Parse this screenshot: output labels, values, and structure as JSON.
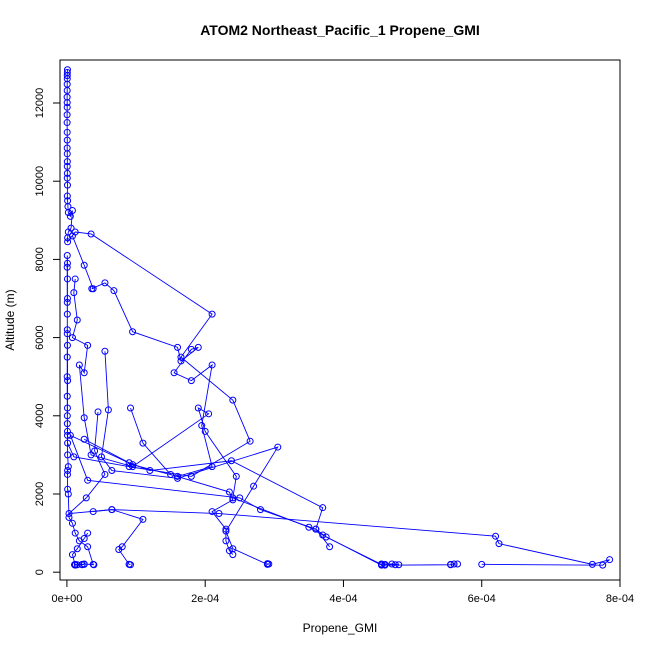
{
  "chart_data": {
    "type": "scatter",
    "title": "ATOM2 Northeast_Pacific_1 Propene_GMI",
    "xlabel": "Propene_GMI",
    "ylabel": "Altitude (m)",
    "xlim": [
      -1e-05,
      0.0008
    ],
    "ylim": [
      -200,
      13100
    ],
    "x_ticks": [
      0,
      0.0002,
      0.0004,
      0.0006,
      0.0008
    ],
    "x_tick_labels": [
      "0e+00",
      "2e-04",
      "4e-04",
      "6e-04",
      "8e-04"
    ],
    "y_ticks": [
      0,
      2000,
      4000,
      6000,
      8000,
      10000,
      12000
    ],
    "y_tick_labels": [
      "0",
      "2000",
      "4000",
      "6000",
      "8000",
      "10000",
      "12000"
    ],
    "grid": false,
    "series_color": "#0000ff",
    "series": [
      {
        "mode": "lines+markers",
        "points": [
          [
            8e-07,
            12850
          ],
          [
            6e-07,
            12780
          ],
          [
            5e-07,
            12700
          ],
          [
            5e-07,
            12620
          ],
          [
            4e-07,
            12480
          ],
          [
            4e-07,
            12320
          ],
          [
            3e-07,
            12150
          ],
          [
            4e-07,
            12010
          ],
          [
            4e-07,
            11890
          ],
          [
            3e-07,
            11700
          ],
          [
            3e-07,
            11500
          ],
          [
            4e-07,
            11250
          ],
          [
            5e-07,
            11050
          ],
          [
            4e-07,
            10850
          ],
          [
            5e-07,
            10700
          ],
          [
            6e-07,
            10500
          ],
          [
            5e-07,
            10380
          ],
          [
            6e-07,
            10200
          ],
          [
            5e-07,
            10080
          ],
          [
            8e-07,
            9900
          ],
          [
            6e-07,
            9620
          ],
          [
            1e-06,
            9500
          ],
          [
            1.5e-06,
            9350
          ],
          [
            2e-06,
            9200
          ],
          [
            5e-06,
            9100
          ],
          [
            8e-06,
            9250
          ],
          [
            6e-06,
            8800
          ],
          [
            2e-06,
            8700
          ],
          [
            1e-06,
            8550
          ],
          [
            1e-06,
            8450
          ],
          [
            1.2e-05,
            8700
          ],
          [
            3.5e-05,
            8650
          ],
          [
            0.00021,
            6600
          ],
          [
            0.000165,
            5500
          ],
          [
            0.00024,
            4400
          ],
          [
            0.000265,
            3350
          ],
          [
            0.00018,
            2450
          ],
          [
            9e-05,
            2700
          ],
          [
            1e-05,
            2950
          ],
          [
            1e-06,
            3300
          ],
          [
            8e-07,
            3600
          ],
          [
            6e-07,
            4000
          ],
          [
            5e-07,
            4500
          ],
          [
            4e-07,
            5000
          ],
          [
            5e-07,
            5500
          ],
          [
            5e-07,
            6100
          ],
          [
            6e-07,
            6600
          ],
          [
            8e-07,
            7000
          ],
          [
            8e-07,
            7500
          ],
          [
            8e-07,
            7900
          ],
          [
            5e-07,
            8100
          ],
          [
            4e-07,
            7800
          ],
          [
            5e-07,
            6900
          ],
          [
            6e-07,
            6200
          ],
          [
            8e-07,
            5800
          ],
          [
            1e-06,
            4900
          ],
          [
            8e-07,
            4200
          ],
          [
            6e-07,
            3800
          ],
          [
            8e-07,
            3500
          ],
          [
            1e-06,
            3000
          ],
          [
            2e-06,
            2700
          ],
          [
            1e-06,
            2600
          ],
          [
            8e-07,
            2500
          ],
          [
            1e-06,
            2120
          ],
          [
            2e-06,
            2000
          ],
          [
            3e-06,
            1400
          ],
          [
            8e-06,
            1250
          ],
          [
            1.2e-05,
            1000
          ],
          [
            1.8e-05,
            800
          ],
          [
            3e-05,
            650
          ],
          [
            3.8e-05,
            200
          ],
          [
            3.9e-05,
            190
          ],
          [
            2.5e-05,
            210
          ],
          [
            2.2e-05,
            200
          ],
          [
            1.5e-05,
            190
          ],
          [
            1.2e-05,
            200
          ],
          [
            1.1e-05,
            190
          ]
        ]
      },
      {
        "mode": "lines+markers",
        "points": [
          [
            8e-06,
            8600
          ],
          [
            2.5e-05,
            7850
          ],
          [
            3.8e-05,
            7250
          ],
          [
            3.6e-05,
            7250
          ],
          [
            5.5e-05,
            7400
          ],
          [
            6.8e-05,
            7200
          ],
          [
            9.5e-05,
            6150
          ],
          [
            0.00016,
            5750
          ],
          [
            0.000165,
            5400
          ],
          [
            0.00019,
            5750
          ],
          [
            0.00018,
            5700
          ],
          [
            0.000155,
            5100
          ],
          [
            0.00018,
            4900
          ],
          [
            0.00021,
            5300
          ],
          [
            0.000195,
            3750
          ],
          [
            0.00021,
            2700
          ],
          [
            0.00016,
            2450
          ],
          [
            9.5e-05,
            2750
          ],
          [
            5e-06,
            3500
          ],
          [
            3e-05,
            2350
          ],
          [
            0.00025,
            1900
          ],
          [
            0.00028,
            1600
          ],
          [
            0.00036,
            1100
          ],
          [
            0.000375,
            900
          ],
          [
            0.000455,
            200
          ],
          [
            0.00046,
            200
          ],
          [
            0.000475,
            190
          ],
          [
            0.00048,
            190
          ],
          [
            0.00047,
            210
          ],
          [
            0.000455,
            210
          ]
        ]
      },
      {
        "mode": "lines+markers",
        "points": [
          [
            1.2e-05,
            7500
          ],
          [
            1e-05,
            7150
          ],
          [
            1.5e-05,
            6450
          ],
          [
            8e-06,
            6000
          ],
          [
            3e-05,
            5800
          ],
          [
            2.5e-05,
            5100
          ],
          [
            1.8e-05,
            5300
          ],
          [
            2.5e-05,
            3950
          ],
          [
            3.5e-05,
            3000
          ],
          [
            9.5e-05,
            2700
          ],
          [
            0.000205,
            4050
          ],
          [
            0.00019,
            4200
          ],
          [
            0.0002,
            3600
          ],
          [
            0.000245,
            2450
          ],
          [
            0.00024,
            1900
          ],
          [
            0.00035,
            1150
          ],
          [
            0.00037,
            950
          ],
          [
            0.000455,
            180
          ],
          [
            0.00046,
            180
          ],
          [
            0.000555,
            190
          ],
          [
            0.00056,
            210
          ],
          [
            0.000565,
            210
          ],
          [
            0.000555,
            200
          ]
        ]
      },
      {
        "mode": "lines+markers",
        "points": [
          [
            5.5e-05,
            5650
          ],
          [
            6e-05,
            4150
          ],
          [
            5e-05,
            2950
          ],
          [
            6.5e-05,
            2600
          ],
          [
            0.00016,
            2400
          ],
          [
            0.000305,
            3200
          ],
          [
            0.00027,
            2200
          ],
          [
            0.00023,
            1050
          ],
          [
            0.00024,
            600
          ],
          [
            0.00029,
            200
          ],
          [
            0.000292,
            210
          ],
          [
            0.00029,
            220
          ]
        ]
      },
      {
        "mode": "lines+markers",
        "points": [
          [
            4.5e-05,
            4100
          ],
          [
            4e-05,
            3100
          ],
          [
            5.5e-05,
            2500
          ],
          [
            2.8e-05,
            1900
          ],
          [
            3e-06,
            1500
          ],
          [
            6.5e-05,
            1600
          ],
          [
            0.00022,
            1500
          ],
          [
            0.00062,
            920
          ],
          [
            0.000625,
            730
          ],
          [
            0.00076,
            200
          ],
          [
            0.000785,
            320
          ],
          [
            0.000775,
            180
          ],
          [
            0.0006,
            200
          ]
        ]
      },
      {
        "mode": "lines+markers",
        "points": [
          [
            9.2e-05,
            4200
          ],
          [
            0.00011,
            3300
          ],
          [
            0.00015,
            2500
          ],
          [
            0.000235,
            2050
          ],
          [
            0.00024,
            1850
          ],
          [
            0.00021,
            1550
          ],
          [
            0.00023,
            1100
          ],
          [
            0.00023,
            800
          ],
          [
            0.000235,
            550
          ],
          [
            0.00024,
            450
          ]
        ]
      },
      {
        "mode": "lines+markers",
        "points": [
          [
            2.5e-05,
            3400
          ],
          [
            9e-05,
            2800
          ],
          [
            0.00012,
            2600
          ],
          [
            0.000238,
            2850
          ],
          [
            0.00037,
            1650
          ],
          [
            0.00036,
            1100
          ],
          [
            0.00038,
            650
          ]
        ]
      },
      {
        "mode": "lines+markers",
        "points": [
          [
            3.8e-05,
            1550
          ],
          [
            6.5e-05,
            1600
          ],
          [
            0.00011,
            1350
          ],
          [
            8e-05,
            650
          ],
          [
            7.5e-05,
            580
          ],
          [
            9e-05,
            200
          ],
          [
            9.2e-05,
            190
          ],
          [
            9e-05,
            200
          ]
        ]
      },
      {
        "mode": "lines+markers",
        "points": [
          [
            3e-05,
            1000
          ],
          [
            2.5e-05,
            860
          ],
          [
            1.5e-05,
            600
          ],
          [
            8e-06,
            450
          ],
          [
            1.2e-05,
            180
          ],
          [
            2.5e-05,
            200
          ],
          [
            2.2e-05,
            190
          ]
        ]
      }
    ]
  }
}
